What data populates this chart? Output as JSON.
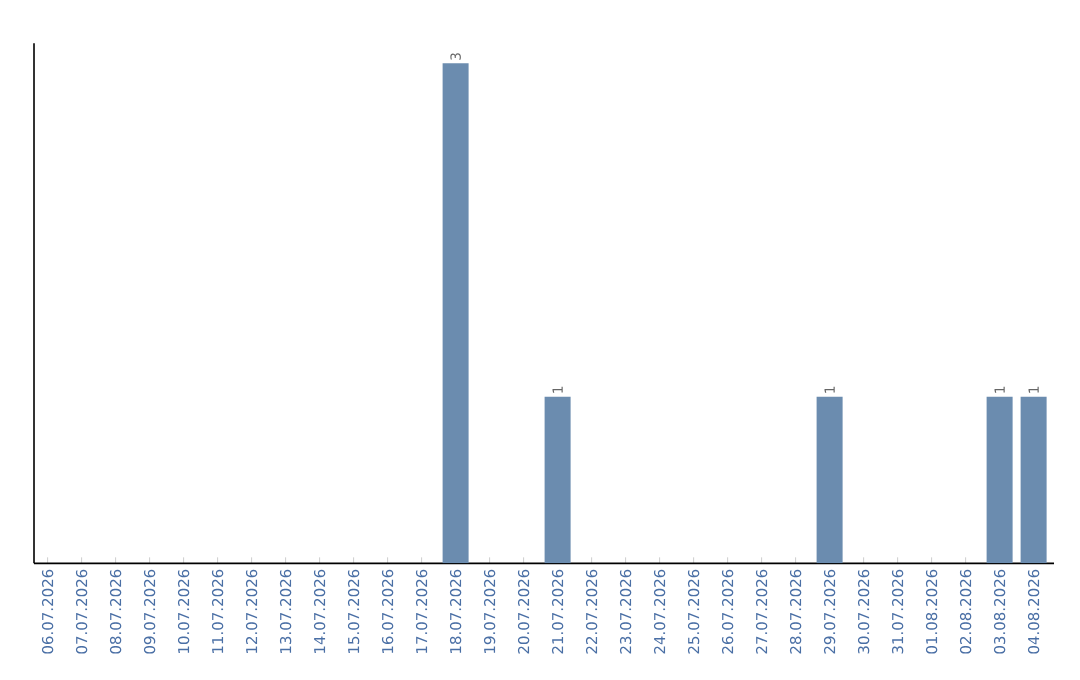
{
  "chart_data": {
    "type": "bar",
    "categories": [
      "06.07.2026",
      "07.07.2026",
      "08.07.2026",
      "09.07.2026",
      "10.07.2026",
      "11.07.2026",
      "12.07.2026",
      "13.07.2026",
      "14.07.2026",
      "15.07.2026",
      "16.07.2026",
      "17.07.2026",
      "18.07.2026",
      "19.07.2026",
      "20.07.2026",
      "21.07.2026",
      "22.07.2026",
      "23.07.2026",
      "24.07.2026",
      "25.07.2026",
      "26.07.2026",
      "27.07.2026",
      "28.07.2026",
      "29.07.2026",
      "30.07.2026",
      "31.07.2026",
      "01.08.2026",
      "02.08.2026",
      "03.08.2026",
      "04.08.2026"
    ],
    "values": [
      null,
      null,
      null,
      null,
      null,
      null,
      null,
      null,
      null,
      null,
      null,
      null,
      3,
      null,
      null,
      1,
      null,
      null,
      null,
      null,
      null,
      null,
      null,
      1,
      null,
      null,
      null,
      null,
      1,
      1
    ],
    "value_labels": [
      null,
      null,
      null,
      null,
      null,
      null,
      null,
      null,
      null,
      null,
      null,
      null,
      "3",
      null,
      null,
      "1",
      null,
      null,
      null,
      null,
      null,
      null,
      null,
      "1",
      null,
      null,
      null,
      null,
      "1",
      "1"
    ],
    "color": "#6b8caf"
  }
}
